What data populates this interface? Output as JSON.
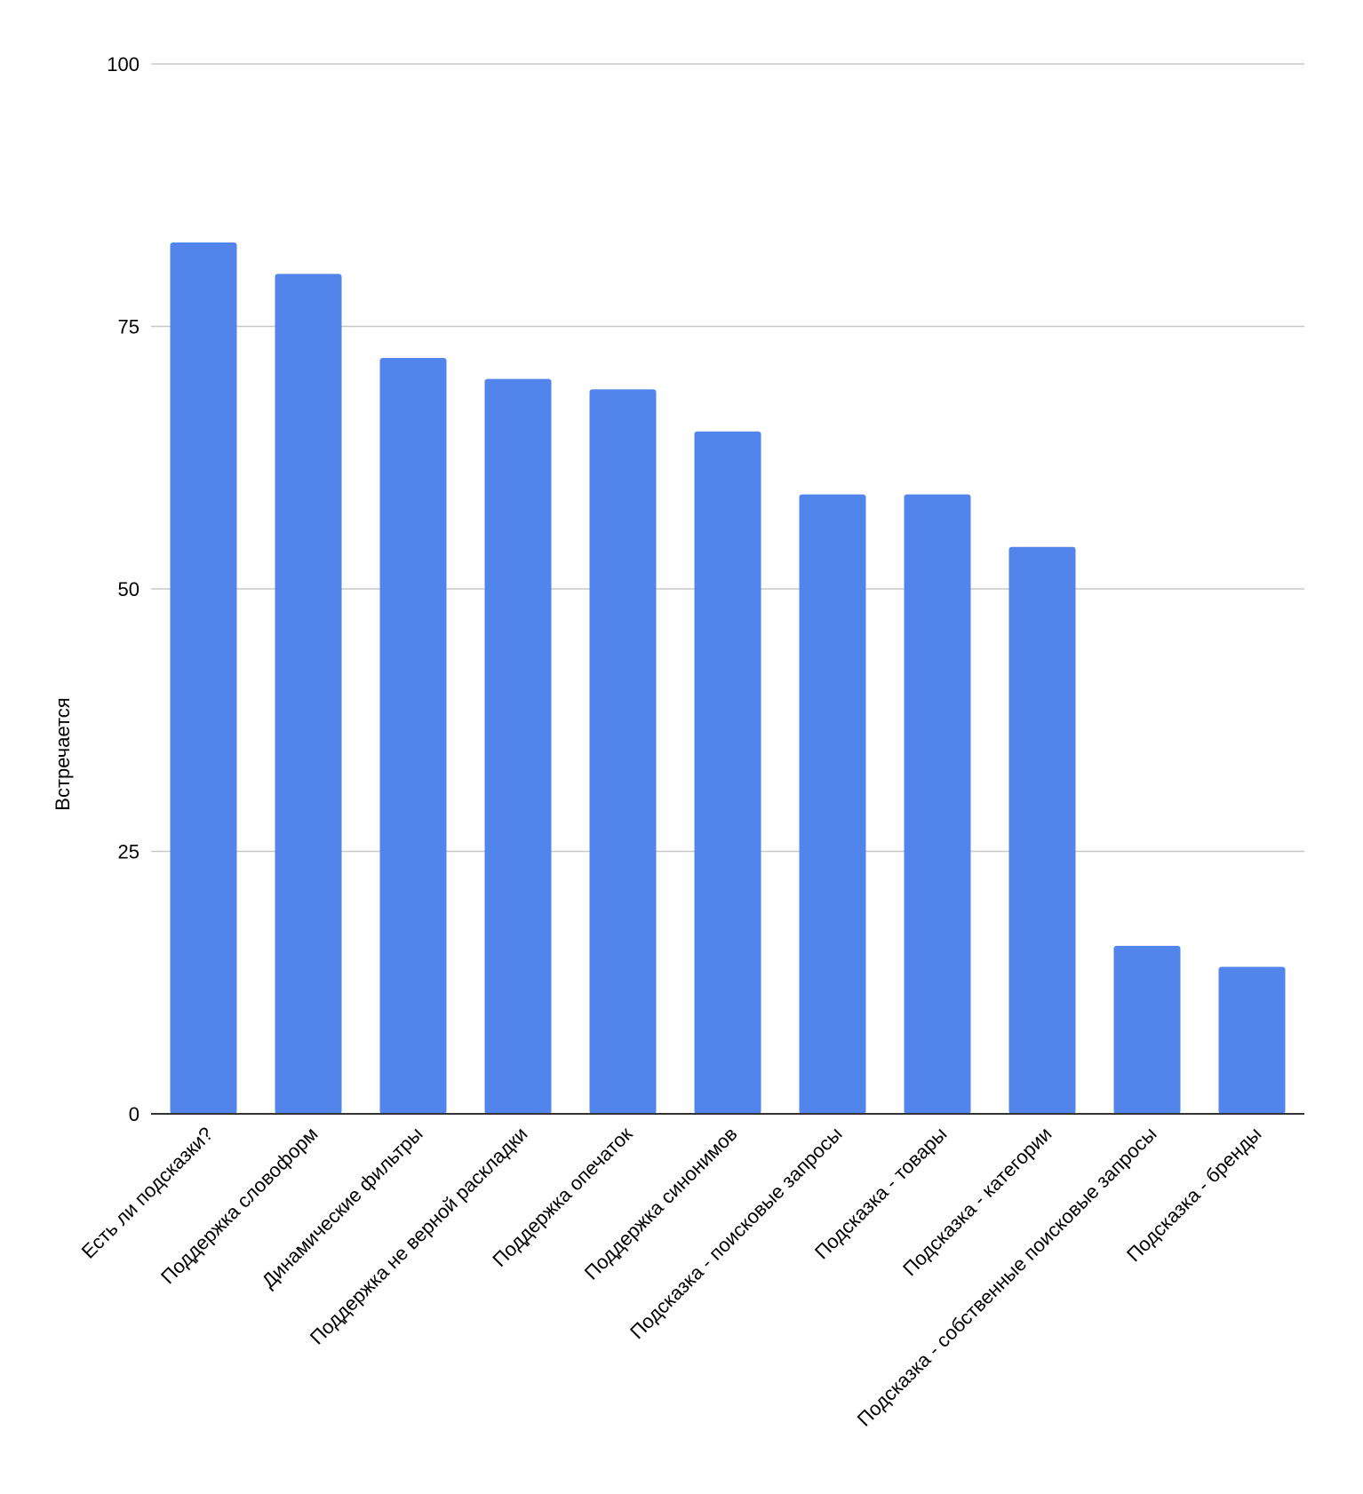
{
  "chart_data": {
    "type": "bar",
    "title": "",
    "xlabel": "",
    "ylabel": "Встречается",
    "ylim": [
      0,
      100
    ],
    "yticks": [
      0,
      25,
      50,
      75,
      100
    ],
    "grid": true,
    "categories": [
      "Есть ли подсказки?",
      "Поддержка словоформ",
      "Динамические фильтры",
      "Поддержка не верной раскладки",
      "Поддержка опечаток",
      "Поддержка синонимов",
      "Подсказка - поисковые запросы",
      "Подсказка - товары",
      "Подсказка - категории",
      "Подсказка - собственные поисковые запросы",
      "Подсказка - бренды"
    ],
    "values": [
      83,
      80,
      72,
      70,
      69,
      65,
      59,
      59,
      54,
      16,
      14
    ],
    "colors": {
      "bar": "#5285EB",
      "grid": "#C8C8C8",
      "axis": "#333333",
      "text": "#000000"
    }
  }
}
